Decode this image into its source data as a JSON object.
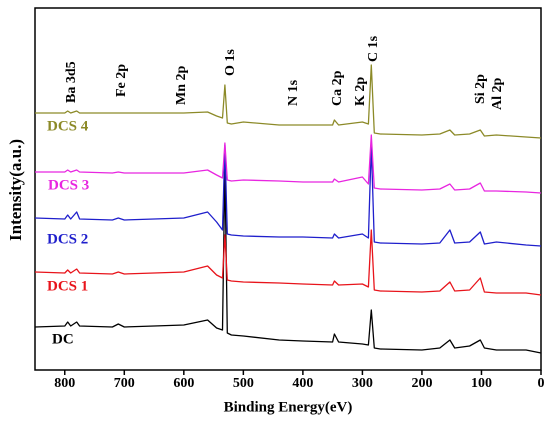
{
  "chart_data": {
    "type": "line",
    "xlabel": "Binding Energy(eV)",
    "ylabel": "Intensity(a.u.)",
    "xlim": [
      850,
      0
    ],
    "xticks": [
      800,
      700,
      600,
      500,
      400,
      300,
      200,
      100,
      0
    ],
    "ylim": [
      0,
      362
    ],
    "x": [
      850,
      800,
      795,
      790,
      780,
      775,
      720,
      710,
      700,
      650,
      600,
      560,
      545,
      535,
      531,
      527,
      520,
      500,
      440,
      400,
      350,
      347,
      340,
      300,
      290,
      285,
      280,
      270,
      200,
      170,
      153,
      145,
      120,
      102,
      95,
      75,
      25,
      0
    ],
    "series": [
      {
        "name": "DC",
        "color": "#000000",
        "values": [
          43,
          44,
          48,
          44,
          48,
          44,
          43,
          46,
          43,
          44,
          45,
          50,
          42,
          40,
          205,
          37,
          35,
          34,
          30,
          29,
          28,
          36,
          28,
          26,
          25,
          60,
          22,
          21,
          20,
          22,
          30,
          22,
          24,
          30,
          22,
          20,
          20,
          17
        ]
      },
      {
        "name": "DCS 1",
        "color": "#e8141b",
        "values": [
          98,
          97,
          100,
          97,
          101,
          97,
          96,
          98,
          96,
          97,
          98,
          104,
          95,
          92,
          135,
          90,
          89,
          88,
          87,
          86,
          85,
          89,
          85,
          86,
          83,
          140,
          80,
          79,
          78,
          79,
          88,
          79,
          80,
          92,
          78,
          77,
          77,
          75
        ]
      },
      {
        "name": "DCS 2",
        "color": "#1f1fcc",
        "values": [
          152,
          151,
          155,
          151,
          158,
          151,
          150,
          152,
          150,
          151,
          152,
          158,
          148,
          140,
          225,
          136,
          135,
          134,
          133,
          133,
          132,
          136,
          132,
          136,
          132,
          225,
          128,
          127,
          126,
          127,
          140,
          127,
          128,
          138,
          126,
          128,
          125,
          124
        ]
      },
      {
        "name": "DCS 3",
        "color": "#e826e0",
        "values": [
          198,
          198,
          200,
          198,
          200,
          198,
          197,
          198,
          197,
          197,
          197,
          200,
          195,
          192,
          227,
          190,
          189,
          190,
          189,
          188,
          188,
          191,
          188,
          193,
          186,
          235,
          182,
          181,
          180,
          181,
          186,
          180,
          181,
          187,
          179,
          179,
          178,
          177
        ]
      },
      {
        "name": "DCS 4",
        "color": "#8c8a28",
        "values": [
          257,
          257,
          259,
          257,
          259,
          257,
          257,
          257,
          257,
          257,
          257,
          258,
          254,
          252,
          285,
          247,
          246,
          248,
          245,
          245,
          245,
          250,
          245,
          248,
          246,
          305,
          237,
          236,
          235,
          236,
          240,
          235,
          236,
          240,
          234,
          235,
          233,
          232
        ]
      }
    ],
    "annotations": [
      "Ba 3d5",
      "Fe 2p",
      "Mn 2p",
      "O 1s",
      "N 1s",
      "Ca 2p",
      "K 2p",
      "C 1s",
      "Si 2p",
      "Al 2p"
    ]
  }
}
